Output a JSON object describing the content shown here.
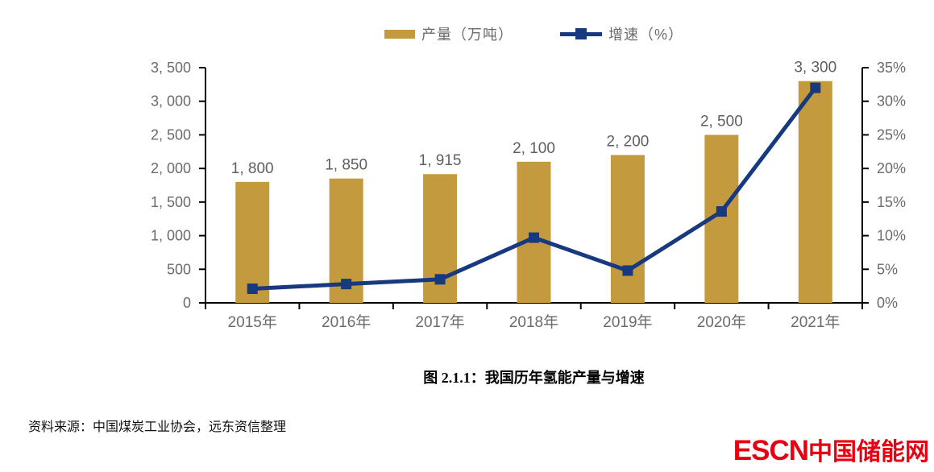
{
  "legend": {
    "items": [
      {
        "label": "产量（万吨）",
        "swatch": "bar-swatch",
        "color": "#C49A3F"
      },
      {
        "label": "增速（%）",
        "swatch": "line-marker-swatch",
        "color": "#17397F"
      }
    ]
  },
  "chart_data": {
    "type": "bar",
    "combo": "bar+line",
    "title": "",
    "categories": [
      "2015年",
      "2016年",
      "2017年",
      "2018年",
      "2019年",
      "2020年",
      "2021年"
    ],
    "series": [
      {
        "name": "产量（万吨）",
        "type": "bar",
        "axis": "left",
        "color": "#C49A3F",
        "values": [
          1800,
          1850,
          1915,
          2100,
          2200,
          2500,
          3300
        ],
        "labels": [
          "1, 800",
          "1, 850",
          "1, 915",
          "2, 100",
          "2, 200",
          "2, 500",
          "3, 300"
        ]
      },
      {
        "name": "增速（%）",
        "type": "line",
        "axis": "right",
        "color": "#17397F",
        "marker": "square",
        "values": [
          2.1,
          2.8,
          3.5,
          9.7,
          4.8,
          13.6,
          32.0
        ]
      }
    ],
    "left_axis": {
      "min": 0,
      "max": 3500,
      "step": 500,
      "tick_labels": [
        "0",
        "500",
        "1, 000",
        "1, 500",
        "2, 000",
        "2, 500",
        "3, 000",
        "3, 500"
      ]
    },
    "right_axis": {
      "min": 0,
      "max": 35,
      "step": 5,
      "tick_labels": [
        "0%",
        "5%",
        "10%",
        "15%",
        "20%",
        "25%",
        "30%",
        "35%"
      ]
    },
    "grid": false,
    "legend_position": "top-center",
    "axis_text_color": "#6b6b6b",
    "axis_line_color": "#000000"
  },
  "caption": {
    "text": "图 2.1.1：我国历年氢能产量与增速"
  },
  "source": {
    "text": "资料来源：中国煤炭工业协会，远东资信整理"
  },
  "logo": {
    "en": "ESCN",
    "zh": "中国储能网",
    "color": "#E60012"
  },
  "colors": {
    "bar": "#C49A3F",
    "line": "#17397F",
    "axis_text": "#6b6b6b",
    "logo_red": "#E60012"
  }
}
